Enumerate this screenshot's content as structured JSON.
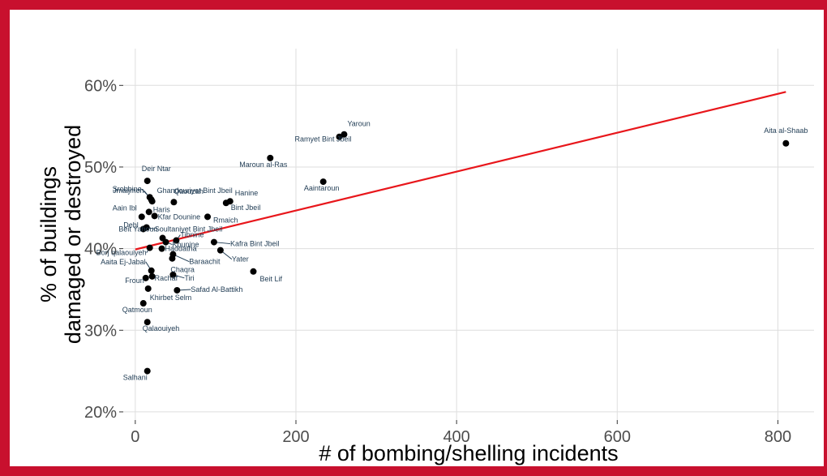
{
  "colors": {
    "frame": "#c8102e",
    "trend": "#e8161b",
    "point": "#000000",
    "label": "#1f3b53"
  },
  "chart_data": {
    "type": "scatter",
    "title": "",
    "xlabel": "# of bombing/shelling incidents",
    "ylabel_lines": [
      "% of buildings",
      "damaged or destroyed"
    ],
    "xlim": [
      -15,
      845
    ],
    "ylim": [
      19,
      64.5
    ],
    "xticks": [
      0,
      200,
      400,
      600,
      800
    ],
    "yticks": [
      20,
      30,
      40,
      50,
      60
    ],
    "ytick_labels": [
      "20%",
      "30%",
      "40%",
      "50%",
      "60%"
    ],
    "grid": true,
    "trend_line": {
      "x": [
        0,
        810
      ],
      "y": [
        39.9,
        59.2
      ]
    },
    "points": [
      {
        "name": "Aita al-Shaab",
        "x": 810,
        "y": 52.9
      },
      {
        "name": "Yaroun",
        "x": 260,
        "y": 54.0
      },
      {
        "name": "Ramyet Bint Jbeil",
        "x": 254,
        "y": 53.7
      },
      {
        "name": "Maroun al-Ras",
        "x": 168,
        "y": 51.1
      },
      {
        "name": "Aaintaroun",
        "x": 234,
        "y": 48.2
      },
      {
        "name": "Deir Ntar",
        "x": 15,
        "y": 48.3
      },
      {
        "name": "Srobbine",
        "x": 18,
        "y": 46.3
      },
      {
        "name": "Ghandouriyet Bint Jbeil",
        "x": 21,
        "y": 45.8
      },
      {
        "name": "Jmaijmeh",
        "x": 20,
        "y": 46.0
      },
      {
        "name": "Qaouzah",
        "x": 48,
        "y": 45.7
      },
      {
        "name": "Hanine",
        "x": 118,
        "y": 45.8
      },
      {
        "name": "Bint Jbeil",
        "x": 113,
        "y": 45.6
      },
      {
        "name": "Haris",
        "x": 17,
        "y": 44.5
      },
      {
        "name": "Aain Ibl",
        "x": 8,
        "y": 43.9
      },
      {
        "name": "Kfar Dounine",
        "x": 24,
        "y": 44.0
      },
      {
        "name": "Rmaich",
        "x": 90,
        "y": 43.9
      },
      {
        "name": "Debl",
        "x": 10,
        "y": 42.4
      },
      {
        "name": "Soultaniyet Bint Jbeil",
        "x": 14,
        "y": 42.6
      },
      {
        "name": "Tibnine",
        "x": 51,
        "y": 41.0
      },
      {
        "name": "Beit Yahoun",
        "x": 34,
        "y": 41.3
      },
      {
        "name": "Kafra Bint Jbeil",
        "x": 98,
        "y": 40.8
      },
      {
        "name": "Kounine",
        "x": 38,
        "y": 40.8
      },
      {
        "name": "Haddatha",
        "x": 33,
        "y": 40.0
      },
      {
        "name": "Yater",
        "x": 106,
        "y": 39.8
      },
      {
        "name": "Borj qalaouiyeh",
        "x": 18,
        "y": 40.1
      },
      {
        "name": "Baraachit",
        "x": 47,
        "y": 39.3
      },
      {
        "name": "Chaqra",
        "x": 46,
        "y": 38.8
      },
      {
        "name": "Aaita Ej-Jabal",
        "x": 20,
        "y": 37.3
      },
      {
        "name": "Beit Lif",
        "x": 147,
        "y": 37.2
      },
      {
        "name": "Tiri",
        "x": 47,
        "y": 36.8
      },
      {
        "name": "Rachaf",
        "x": 21,
        "y": 36.6
      },
      {
        "name": "Froun",
        "x": 13,
        "y": 36.4
      },
      {
        "name": "Safad Al-Battikh",
        "x": 52,
        "y": 34.9
      },
      {
        "name": "Khirbet Selm",
        "x": 16,
        "y": 35.1
      },
      {
        "name": "Qatmoun",
        "x": 10,
        "y": 33.3
      },
      {
        "name": "Qalaouiyeh",
        "x": 15,
        "y": 31.0
      },
      {
        "name": "Salhani",
        "x": 15,
        "y": 25.0
      }
    ]
  }
}
